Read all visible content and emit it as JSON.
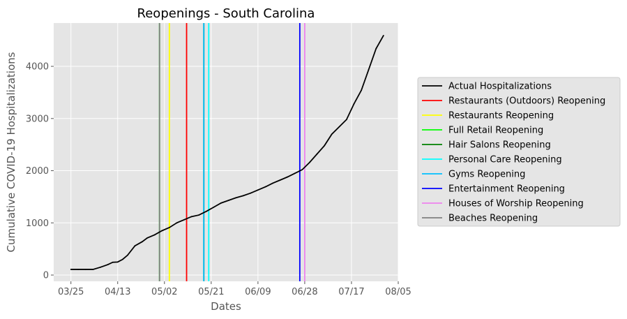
{
  "chart_data": {
    "type": "line",
    "title": "Reopenings - South Carolina",
    "xlabel": "Dates",
    "ylabel": "Cumulative COVID-19 Hospitalizations",
    "x_ticks": [
      "03/25",
      "04/13",
      "05/02",
      "05/21",
      "06/09",
      "06/28",
      "07/17",
      "08/05"
    ],
    "y_ticks": [
      0,
      1000,
      2000,
      3000,
      4000
    ],
    "xlim": [
      "2020-03-18",
      "2020-08-05"
    ],
    "ylim": [
      -120,
      4830
    ],
    "grid": true,
    "legend_position": "outside-right",
    "series": [
      {
        "name": "Actual Hospitalizations",
        "color": "#000000",
        "points": [
          [
            "2020-03-25",
            108
          ],
          [
            "2020-03-28",
            108
          ],
          [
            "2020-03-31",
            108
          ],
          [
            "2020-04-03",
            108
          ],
          [
            "2020-04-06",
            150
          ],
          [
            "2020-04-09",
            200
          ],
          [
            "2020-04-11",
            245
          ],
          [
            "2020-04-13",
            250
          ],
          [
            "2020-04-15",
            300
          ],
          [
            "2020-04-17",
            380
          ],
          [
            "2020-04-20",
            560
          ],
          [
            "2020-04-23",
            640
          ],
          [
            "2020-04-25",
            710
          ],
          [
            "2020-04-28",
            770
          ],
          [
            "2020-05-01",
            850
          ],
          [
            "2020-05-04",
            910
          ],
          [
            "2020-05-07",
            1000
          ],
          [
            "2020-05-10",
            1060
          ],
          [
            "2020-05-13",
            1120
          ],
          [
            "2020-05-16",
            1150
          ],
          [
            "2020-05-19",
            1220
          ],
          [
            "2020-05-22",
            1300
          ],
          [
            "2020-05-25",
            1380
          ],
          [
            "2020-05-28",
            1430
          ],
          [
            "2020-05-31",
            1480
          ],
          [
            "2020-06-03",
            1520
          ],
          [
            "2020-06-06",
            1570
          ],
          [
            "2020-06-09",
            1630
          ],
          [
            "2020-06-12",
            1690
          ],
          [
            "2020-06-15",
            1760
          ],
          [
            "2020-06-18",
            1820
          ],
          [
            "2020-06-21",
            1880
          ],
          [
            "2020-06-24",
            1950
          ],
          [
            "2020-06-27",
            2020
          ],
          [
            "2020-06-30",
            2160
          ],
          [
            "2020-07-03",
            2320
          ],
          [
            "2020-07-06",
            2480
          ],
          [
            "2020-07-09",
            2700
          ],
          [
            "2020-07-12",
            2840
          ],
          [
            "2020-07-15",
            2980
          ],
          [
            "2020-07-18",
            3280
          ],
          [
            "2020-07-21",
            3540
          ],
          [
            "2020-07-24",
            3940
          ],
          [
            "2020-07-27",
            4340
          ],
          [
            "2020-07-30",
            4590
          ]
        ]
      },
      {
        "name": "Restaurants (Outdoors) Reopening",
        "color": "#ff0000",
        "vline": "2020-05-11"
      },
      {
        "name": "Restaurants Reopening",
        "color": "#ffff00",
        "vline": "2020-05-04"
      },
      {
        "name": "Full Retail Reopening",
        "color": "#00ff00",
        "vline": "2020-04-30"
      },
      {
        "name": "Hair Salons Reopening",
        "color": "#008000",
        "vline": "2020-05-18"
      },
      {
        "name": "Personal Care Reopening",
        "color": "#00ffff",
        "vline": "2020-05-20"
      },
      {
        "name": "Gyms Reopening",
        "color": "#00bfff",
        "vline": "2020-05-18"
      },
      {
        "name": "Entertainment Reopening",
        "color": "#0000ff",
        "vline": "2020-06-26"
      },
      {
        "name": "Houses of Worship Reopening",
        "color": "#ee82ee",
        "vline": "2020-06-28"
      },
      {
        "name": "Beaches Reopening",
        "color": "#808080",
        "vline": "2020-04-30"
      }
    ]
  }
}
